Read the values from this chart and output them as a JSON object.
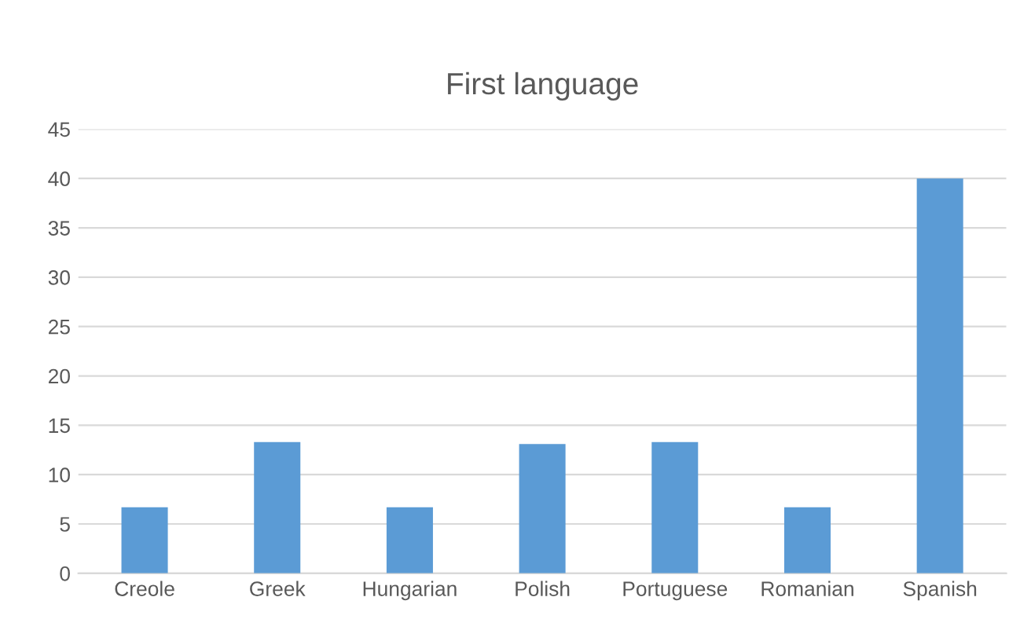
{
  "chart_data": {
    "type": "bar",
    "title": "First language",
    "categories": [
      "Creole",
      "Greek",
      "Hungarian",
      "Polish",
      "Portuguese",
      "Romanian",
      "Spanish"
    ],
    "values": [
      6.7,
      13.3,
      6.7,
      13.1,
      13.3,
      6.7,
      40
    ],
    "color": "#5b9bd5",
    "ylim": [
      0,
      45
    ],
    "yticks": [
      0,
      5,
      10,
      15,
      20,
      25,
      30,
      35,
      40,
      45
    ],
    "grid": "y",
    "legend": false
  }
}
